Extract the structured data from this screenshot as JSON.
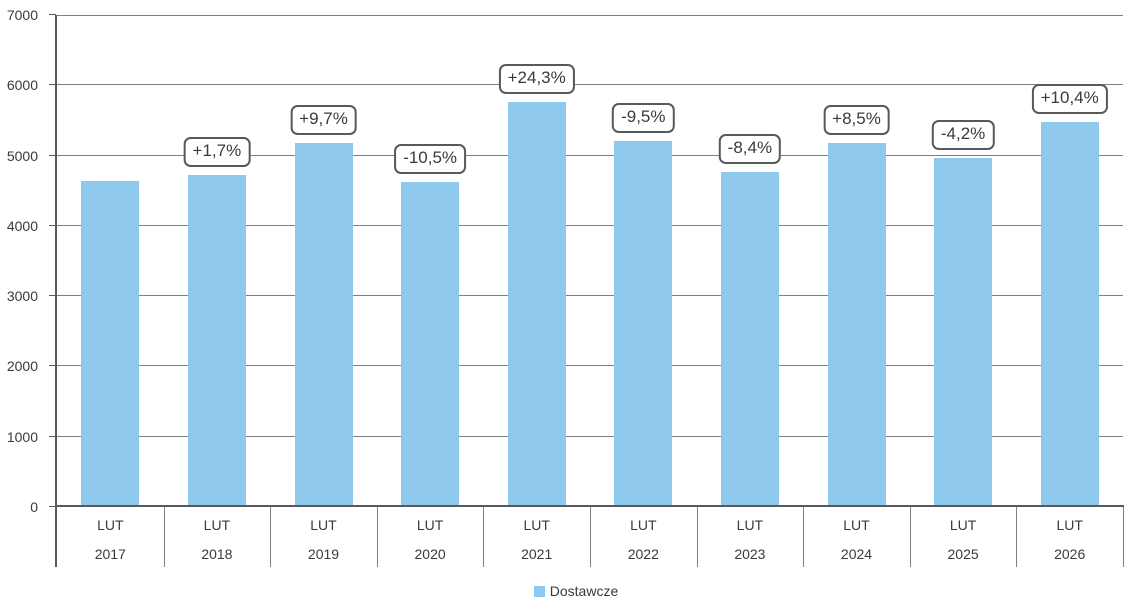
{
  "chart_data": {
    "type": "bar",
    "title": "",
    "xlabel": "",
    "ylabel": "",
    "categories": [
      {
        "month": "LUT",
        "year": "2017"
      },
      {
        "month": "LUT",
        "year": "2018"
      },
      {
        "month": "LUT",
        "year": "2019"
      },
      {
        "month": "LUT",
        "year": "2020"
      },
      {
        "month": "LUT",
        "year": "2021"
      },
      {
        "month": "LUT",
        "year": "2022"
      },
      {
        "month": "LUT",
        "year": "2023"
      },
      {
        "month": "LUT",
        "year": "2024"
      },
      {
        "month": "LUT",
        "year": "2025"
      },
      {
        "month": "LUT",
        "year": "2026"
      }
    ],
    "series": [
      {
        "name": "Dostawcze",
        "color": "#8FC9EC",
        "values": [
          4640,
          4720,
          5180,
          4630,
          5760,
          5210,
          4770,
          5180,
          4960,
          5480
        ],
        "bar_labels": [
          "",
          "+1,7%",
          "+9,7%",
          "-10,5%",
          "+24,3%",
          "-9,5%",
          "-8,4%",
          "+8,5%",
          "-4,2%",
          "+10,4%"
        ]
      }
    ],
    "ylim": [
      0,
      7000
    ],
    "yticks": [
      0,
      1000,
      2000,
      3000,
      4000,
      5000,
      6000,
      7000
    ],
    "grid": true,
    "legend_position": "bottom",
    "colors": {
      "bar": "#8FC9EC",
      "gridline": "#808080",
      "axis": "#595959",
      "text": "#3A3A3A",
      "label_box_border": "#595959",
      "label_box_bg": "#FFFFFF"
    }
  }
}
